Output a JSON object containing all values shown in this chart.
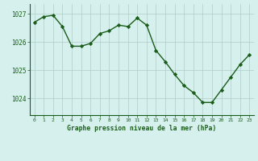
{
  "x": [
    0,
    1,
    2,
    3,
    4,
    5,
    6,
    7,
    8,
    9,
    10,
    11,
    12,
    13,
    14,
    15,
    16,
    17,
    18,
    19,
    20,
    21,
    22,
    23
  ],
  "y": [
    1026.7,
    1026.9,
    1026.95,
    1026.55,
    1025.85,
    1025.85,
    1025.95,
    1026.3,
    1026.4,
    1026.6,
    1026.55,
    1026.85,
    1026.6,
    1025.7,
    1025.3,
    1024.85,
    1024.45,
    1024.2,
    1023.85,
    1023.85,
    1024.3,
    1024.75,
    1025.2,
    1025.55
  ],
  "line_color": "#1a5c1a",
  "marker": "D",
  "marker_size": 2.2,
  "bg_color": "#d6f0ee",
  "grid_color": "#b0ccc8",
  "xlabel": "Graphe pression niveau de la mer (hPa)",
  "xlabel_color": "#1a5c1a",
  "tick_color": "#1a5c1a",
  "ylim": [
    1023.4,
    1027.35
  ],
  "yticks": [
    1024,
    1025,
    1026,
    1027
  ],
  "xticks": [
    0,
    1,
    2,
    3,
    4,
    5,
    6,
    7,
    8,
    9,
    10,
    11,
    12,
    13,
    14,
    15,
    16,
    17,
    18,
    19,
    20,
    21,
    22,
    23
  ],
  "linewidth": 1.0,
  "marker_color": "#1a5c1a",
  "marker_edge_color": "#1a5c1a"
}
